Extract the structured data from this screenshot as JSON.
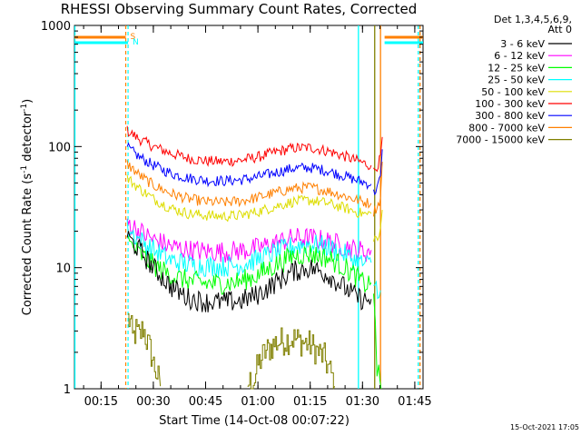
{
  "chart_data": {
    "type": "line",
    "title": "RHESSI Observing Summary Count Rates, Corrected",
    "xlabel": "Start Time (14-Oct-08 00:07:22)",
    "ylabel": "Corrected Count Rate (s",
    "ylabel_sup": "-1",
    "ylabel_tail": " detector",
    "ylabel_tail_sup": "-1",
    "ylabel_end": ")",
    "xticks": [
      "00:15",
      "00:30",
      "00:45",
      "01:00",
      "01:15",
      "01:30",
      "01:45"
    ],
    "yticks": [
      "1",
      "10",
      "100",
      "1000"
    ],
    "xlim": [
      "00:07:22",
      "01:47:22"
    ],
    "ylim": [
      1,
      1000
    ],
    "yscale": "log",
    "legend_header": [
      "Det 1,3,4,5,6,9,",
      "Att 0"
    ],
    "legend_position": "right",
    "series": [
      {
        "name": "3 - 6 keV",
        "color": "#000000",
        "segments": [
          [
            [
              "00:22:30",
              18
            ],
            [
              "00:26",
              14
            ],
            [
              "00:30",
              10
            ],
            [
              "00:35",
              7
            ],
            [
              "00:40",
              5.6
            ],
            [
              "00:45",
              5.2
            ],
            [
              "00:50",
              5.2
            ],
            [
              "00:55",
              5.3
            ],
            [
              "01:00",
              6
            ],
            [
              "01:05",
              7.5
            ],
            [
              "01:10",
              9.3
            ],
            [
              "01:15",
              10
            ],
            [
              "01:20",
              8.8
            ],
            [
              "01:25",
              6.8
            ],
            [
              "01:28",
              5.8
            ],
            [
              "01:31",
              5.3
            ],
            [
              "01:32:30",
              5.5
            ]
          ]
        ]
      },
      {
        "name": "6 - 12 keV",
        "color": "#ff00ff",
        "segments": [
          [
            [
              "00:22:30",
              24
            ],
            [
              "00:26",
              20
            ],
            [
              "00:30",
              17
            ],
            [
              "00:35",
              15
            ],
            [
              "00:40",
              14
            ],
            [
              "00:45",
              13.6
            ],
            [
              "00:50",
              13.5
            ],
            [
              "00:55",
              13.8
            ],
            [
              "01:00",
              14.5
            ],
            [
              "01:05",
              16
            ],
            [
              "01:10",
              17.5
            ],
            [
              "01:15",
              17.5
            ],
            [
              "01:20",
              16.5
            ],
            [
              "01:25",
              15
            ],
            [
              "01:28",
              14
            ],
            [
              "01:31",
              13.5
            ],
            [
              "01:32:30",
              14
            ]
          ]
        ]
      },
      {
        "name": "12 - 25 keV",
        "color": "#00ff00",
        "segments": [
          [
            [
              "00:22:30",
              16.5
            ],
            [
              "00:26",
              13
            ],
            [
              "00:30",
              10.5
            ],
            [
              "00:35",
              8.6
            ],
            [
              "00:40",
              7.8
            ],
            [
              "00:45",
              7.4
            ],
            [
              "00:50",
              7.4
            ],
            [
              "00:55",
              7.7
            ],
            [
              "01:00",
              8.7
            ],
            [
              "01:05",
              10.5
            ],
            [
              "01:10",
              12.5
            ],
            [
              "01:15",
              13
            ],
            [
              "01:20",
              12
            ],
            [
              "01:25",
              10
            ],
            [
              "01:28",
              8.5
            ],
            [
              "01:31",
              7.2
            ],
            [
              "01:32:30",
              7.5
            ]
          ],
          [
            [
              "01:33:10",
              7
            ],
            [
              "01:33:40",
              3
            ],
            [
              "01:34:10",
              1.2
            ],
            [
              "01:34:40",
              1.6
            ],
            [
              "01:35:20",
              1
            ]
          ]
        ]
      },
      {
        "name": "25 - 50 keV",
        "color": "#00ffff",
        "segments": [
          [
            [
              "00:22:30",
              21
            ],
            [
              "00:26",
              17
            ],
            [
              "00:30",
              14
            ],
            [
              "00:35",
              11.5
            ],
            [
              "00:40",
              10.6
            ],
            [
              "00:45",
              10.3
            ],
            [
              "00:50",
              10.2
            ],
            [
              "00:55",
              10.5
            ],
            [
              "01:00",
              11.7
            ],
            [
              "01:05",
              13.3
            ],
            [
              "01:10",
              15
            ],
            [
              "01:15",
              15.8
            ],
            [
              "01:20",
              14.8
            ],
            [
              "01:25",
              12.8
            ],
            [
              "01:28",
              11.5
            ],
            [
              "01:31",
              10.5
            ],
            [
              "01:32:30",
              11
            ]
          ],
          [
            [
              "01:33:10",
              7.5
            ],
            [
              "01:34:20",
              6.8
            ],
            [
              "01:35:10",
              6.5
            ]
          ]
        ]
      },
      {
        "name": "50 - 100 keV",
        "color": "#dddd00",
        "segments": [
          [
            [
              "00:22:30",
              55
            ],
            [
              "00:26",
              45
            ],
            [
              "00:30",
              37
            ],
            [
              "00:35",
              31
            ],
            [
              "00:40",
              28
            ],
            [
              "00:45",
              27
            ],
            [
              "00:50",
              26.5
            ],
            [
              "00:55",
              27
            ],
            [
              "01:00",
              29
            ],
            [
              "01:05",
              32
            ],
            [
              "01:10",
              35
            ],
            [
              "01:15",
              36
            ],
            [
              "01:20",
              34
            ],
            [
              "01:25",
              31
            ],
            [
              "01:28",
              29
            ],
            [
              "01:31",
              27.5
            ],
            [
              "01:32:30",
              28
            ]
          ],
          [
            [
              "01:33:10",
              18
            ],
            [
              "01:34:20",
              17
            ],
            [
              "01:35:10",
              20
            ],
            [
              "01:35:40",
              30
            ]
          ]
        ]
      },
      {
        "name": "100 - 300 keV",
        "color": "#ff0000",
        "segments": [
          [
            [
              "00:22:30",
              135
            ],
            [
              "00:26",
              115
            ],
            [
              "00:30",
              100
            ],
            [
              "00:35",
              88
            ],
            [
              "00:40",
              80
            ],
            [
              "00:45",
              76
            ],
            [
              "00:50",
              75
            ],
            [
              "00:55",
              77
            ],
            [
              "01:00",
              82
            ],
            [
              "01:05",
              90
            ],
            [
              "01:10",
              97
            ],
            [
              "01:15",
              98
            ],
            [
              "01:20",
              92
            ],
            [
              "01:25",
              83
            ],
            [
              "01:28",
              77
            ],
            [
              "01:31",
              72
            ],
            [
              "01:32:30",
              70
            ]
          ],
          [
            [
              "01:33:10",
              62
            ],
            [
              "01:34:30",
              72
            ],
            [
              "01:35:10",
              80
            ],
            [
              "01:35:40",
              120
            ]
          ]
        ]
      },
      {
        "name": "300 - 800 keV",
        "color": "#0000ff",
        "segments": [
          [
            [
              "00:22:30",
              98
            ],
            [
              "00:26",
              82
            ],
            [
              "00:30",
              70
            ],
            [
              "00:35",
              60
            ],
            [
              "00:40",
              55
            ],
            [
              "00:45",
              52.5
            ],
            [
              "00:50",
              52
            ],
            [
              "00:55",
              53
            ],
            [
              "01:00",
              56
            ],
            [
              "01:05",
              61
            ],
            [
              "01:10",
              66
            ],
            [
              "01:15",
              67
            ],
            [
              "01:20",
              63
            ],
            [
              "01:25",
              57
            ],
            [
              "01:28",
              53
            ],
            [
              "01:31",
              50
            ],
            [
              "01:32:30",
              49
            ]
          ],
          [
            [
              "01:33:10",
              41
            ],
            [
              "01:34:30",
              48
            ],
            [
              "01:35:10",
              56
            ],
            [
              "01:35:40",
              95
            ]
          ]
        ]
      },
      {
        "name": "800 - 7000 keV",
        "color": "#ff8000",
        "segments": [
          [
            [
              "00:22:30",
              72
            ],
            [
              "00:26",
              58
            ],
            [
              "00:30",
              48
            ],
            [
              "00:35",
              41
            ],
            [
              "00:40",
              37
            ],
            [
              "00:45",
              35
            ],
            [
              "00:50",
              34.5
            ],
            [
              "00:55",
              35.5
            ],
            [
              "01:00",
              38
            ],
            [
              "01:05",
              41.5
            ],
            [
              "01:10",
              45
            ],
            [
              "01:15",
              46
            ],
            [
              "01:20",
              43
            ],
            [
              "01:25",
              39
            ],
            [
              "01:28",
              36.5
            ],
            [
              "01:31",
              34.5
            ],
            [
              "01:32:30",
              34
            ]
          ],
          [
            [
              "01:33:10",
              29
            ],
            [
              "01:34:30",
              33
            ],
            [
              "01:35:10",
              38
            ],
            [
              "01:35:40",
              75
            ]
          ]
        ]
      },
      {
        "name": "7000 - 15000 keV",
        "color": "#808000",
        "segments": [
          [
            [
              "00:22:40",
              3.8
            ],
            [
              "00:23:20",
              3.5
            ],
            [
              "00:24",
              2.6
            ],
            [
              "00:25",
              3
            ],
            [
              "00:26",
              2.7
            ],
            [
              "00:27",
              3.2
            ],
            [
              "00:28",
              2.5
            ],
            [
              "00:29",
              2.1
            ],
            [
              "00:30",
              1.6
            ],
            [
              "00:31",
              1.3
            ],
            [
              "00:32",
              1.05
            ]
          ],
          [
            [
              "00:57",
              1.1
            ],
            [
              "00:59",
              1.2
            ],
            [
              "01:00",
              1.6
            ],
            [
              "01:02",
              2
            ],
            [
              "01:05",
              2.4
            ],
            [
              "01:10",
              2.6
            ],
            [
              "01:15",
              2.3
            ],
            [
              "01:19",
              1.8
            ],
            [
              "01:21",
              1.3
            ],
            [
              "01:22",
              1.05
            ]
          ]
        ]
      }
    ],
    "markers": [
      {
        "label": "S",
        "color": "#ff8000",
        "time": "00:22:05",
        "style": "dashed",
        "segments": [
          [
            "00:07:22",
            "00:22:05"
          ],
          [
            "01:36:20",
            "01:47:22"
          ]
        ]
      },
      {
        "label": "N",
        "color": "#00ffff",
        "time": "00:22:45",
        "style": "dashed",
        "segments": [
          [
            "00:07:22",
            "00:22:45"
          ],
          [
            "01:36:20",
            "01:47:22"
          ]
        ]
      }
    ],
    "vlines": [
      {
        "time": "00:07:30",
        "color": "#00ffff",
        "style": "solid"
      },
      {
        "time": "01:28:50",
        "color": "#00ffff",
        "style": "solid"
      },
      {
        "time": "01:33:30",
        "color": "#808000",
        "style": "solid"
      },
      {
        "time": "01:35:10",
        "color": "#ff8000",
        "style": "solid"
      },
      {
        "time": "01:46:00",
        "color": "#00ffff",
        "style": "dashed"
      },
      {
        "time": "01:46:30",
        "color": "#ff8000",
        "style": "dashed"
      }
    ],
    "grid": false
  },
  "footer": {
    "timestamp": "15-Oct-2021 17:05"
  }
}
